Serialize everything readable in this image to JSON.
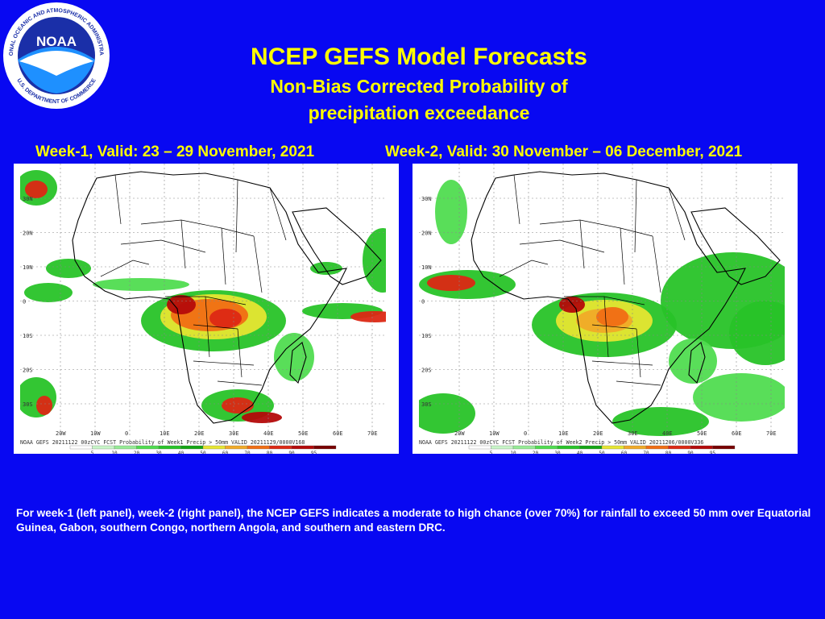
{
  "logo": {
    "text": "NOAA",
    "ring_top": "NATIONAL OCEANIC AND ATMOSPHERIC ADMINISTRATION",
    "ring_bottom": "U.S. DEPARTMENT OF COMMERCE"
  },
  "title": "NCEP GEFS Model Forecasts",
  "subtitle_line1": "Non-Bias Corrected Probability of",
  "subtitle_line2": "precipitation exceedance",
  "panels": [
    {
      "heading": "Week-1, Valid: 23 – 29 November, 2021",
      "caption": "NOAA GEFS 20211122 00zCYC FCST Probability of Week1 Precip > 50mm  VALID 20211129/0000V168"
    },
    {
      "heading": "Week-2, Valid: 30 November – 06 December, 2021",
      "caption": "NOAA GEFS 20211122 00zCYC FCST Probability of Week2 Precip > 50mm  VALID 20211206/0000V336"
    }
  ],
  "lat_labels": [
    "30N",
    "20N",
    "10N",
    "0",
    "10S",
    "20S",
    "30S"
  ],
  "lon_labels": [
    "20W",
    "10W",
    "0",
    "10E",
    "20E",
    "30E",
    "40E",
    "50E",
    "60E",
    "70E"
  ],
  "colorbar": {
    "ticks": [
      "5",
      "10",
      "20",
      "30",
      "40",
      "50",
      "60",
      "70",
      "80",
      "90",
      "95"
    ],
    "colors": [
      "#ffffff",
      "#c8f5c8",
      "#96eb96",
      "#50dc50",
      "#28c328",
      "#14a514",
      "#e6e632",
      "#f0aa28",
      "#f06e14",
      "#dc2814",
      "#b40a0a",
      "#780000"
    ]
  },
  "footer": "For week-1 (left panel), week-2 (right panel), the NCEP GEFS indicates a moderate to high chance (over 70%) for rainfall to exceed 50 mm over Equatorial Guinea, Gabon, southern Congo, northern Angola, and southern and eastern DRC."
}
